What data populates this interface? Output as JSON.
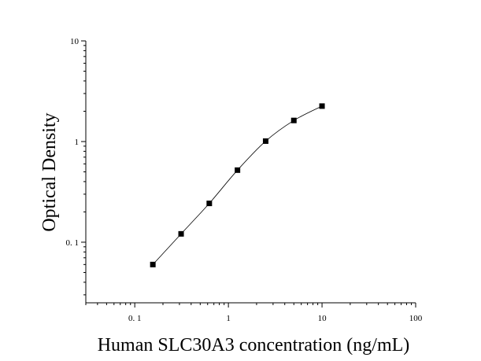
{
  "chart_data": {
    "type": "scatter",
    "title": "",
    "xlabel": "Human SLC30A3 concentration (ng/mL)",
    "ylabel": "Optical Density",
    "x_scale": "log",
    "y_scale": "log",
    "xlim": [
      0.03,
      100
    ],
    "ylim": [
      0.025,
      10
    ],
    "x_ticks": [
      {
        "value": 0.1,
        "label": "0. 1"
      },
      {
        "value": 1,
        "label": "1"
      },
      {
        "value": 10,
        "label": "10"
      },
      {
        "value": 100,
        "label": "100"
      }
    ],
    "y_ticks": [
      {
        "value": 0.1,
        "label": "0. 1"
      },
      {
        "value": 1,
        "label": "1"
      },
      {
        "value": 10,
        "label": "10"
      }
    ],
    "grid": false,
    "legend": "none",
    "series": [
      {
        "x": [
          0.156,
          0.3125,
          0.625,
          1.25,
          2.5,
          5,
          10
        ],
        "values": [
          0.06,
          0.121,
          0.243,
          0.52,
          1.01,
          1.62,
          2.25
        ],
        "marker": "square",
        "fit_line": true,
        "color": "#000000"
      }
    ]
  }
}
